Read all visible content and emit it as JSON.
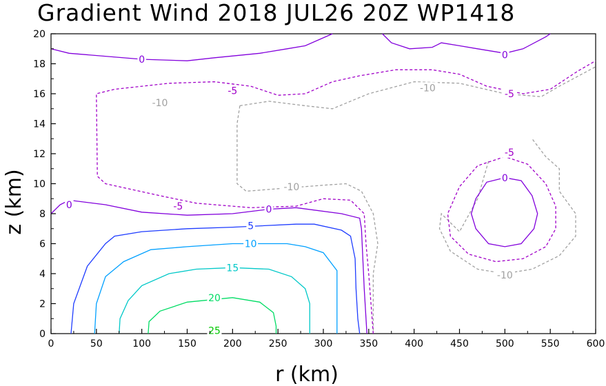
{
  "chart_data": {
    "type": "contour",
    "title": "Gradient Wind 2018 JUL26 20Z   WP1418",
    "xlabel": "r (km)",
    "ylabel": "z (km)",
    "xlim": [
      0,
      600
    ],
    "ylim": [
      0,
      20
    ],
    "xticks": [
      "0",
      "50",
      "100",
      "150",
      "200",
      "250",
      "300",
      "350",
      "400",
      "450",
      "500",
      "550",
      "600"
    ],
    "yticks": [
      "0",
      "2",
      "4",
      "6",
      "8",
      "10",
      "12",
      "14",
      "16",
      "18",
      "20"
    ],
    "grid": false,
    "colors": {
      "neg10": "#a0a0a0",
      "neg5": "#a000c8",
      "zero": "#8200dc",
      "pos5": "#1e3cff",
      "pos10": "#00a0ff",
      "pos15": "#00c8c8",
      "pos20": "#00dc64",
      "pos25": "#00c800"
    },
    "contours": [
      {
        "level": -10,
        "color_key": "neg10",
        "dashed": true,
        "points": [
          [
            208,
            15.2
          ],
          [
            205,
            14.0
          ],
          [
            205,
            10.0
          ],
          [
            215,
            9.5
          ],
          [
            300,
            9.9
          ],
          [
            325,
            10.0
          ],
          [
            342,
            9.5
          ],
          [
            355,
            8.0
          ],
          [
            360,
            6.0
          ],
          [
            355,
            4.0
          ],
          [
            355,
            0
          ]
        ]
      },
      {
        "level": -10,
        "color_key": "neg10",
        "dashed": true,
        "points": [
          [
            208,
            15.2
          ],
          [
            240,
            15.5
          ],
          [
            280,
            15.2
          ],
          [
            310,
            15.0
          ],
          [
            350,
            16.0
          ],
          [
            400,
            16.8
          ],
          [
            450,
            16.7
          ],
          [
            500,
            16.0
          ],
          [
            540,
            15.8
          ],
          [
            560,
            16.5
          ],
          [
            600,
            17.8
          ]
        ]
      },
      {
        "level": -10,
        "color_key": "neg10",
        "dashed": true,
        "points": [
          [
            482,
            11.5
          ],
          [
            470,
            9.0
          ],
          [
            450,
            6.8
          ],
          [
            430,
            8.0
          ],
          [
            428,
            7.0
          ],
          [
            440,
            5.5
          ],
          [
            470,
            4.3
          ],
          [
            500,
            4.0
          ],
          [
            530,
            4.3
          ],
          [
            560,
            5.2
          ],
          [
            578,
            6.5
          ],
          [
            578,
            8.0
          ],
          [
            560,
            9.5
          ],
          [
            560,
            11.0
          ],
          [
            545,
            11.8
          ],
          [
            530,
            13.0
          ]
        ]
      },
      {
        "level": -5,
        "color_key": "neg5",
        "dashed": true,
        "points": [
          [
            355,
            0
          ],
          [
            350,
            4.0
          ],
          [
            347,
            6.0
          ],
          [
            345,
            8.0
          ],
          [
            330,
            8.9
          ],
          [
            300,
            9.0
          ],
          [
            270,
            8.5
          ],
          [
            220,
            8.4
          ],
          [
            160,
            8.7
          ],
          [
            120,
            9.2
          ],
          [
            60,
            10.0
          ],
          [
            51,
            10.5
          ],
          [
            50,
            16.0
          ],
          [
            70,
            16.3
          ],
          [
            130,
            16.7
          ],
          [
            180,
            16.8
          ],
          [
            220,
            16.5
          ],
          [
            250,
            15.9
          ],
          [
            280,
            16.0
          ],
          [
            310,
            16.8
          ],
          [
            340,
            17.2
          ],
          [
            380,
            17.6
          ],
          [
            420,
            17.6
          ],
          [
            450,
            17.3
          ],
          [
            480,
            16.5
          ],
          [
            520,
            16.0
          ],
          [
            550,
            16.3
          ],
          [
            580,
            17.5
          ],
          [
            600,
            18.2
          ]
        ]
      },
      {
        "level": -5,
        "color_key": "neg5",
        "dashed": true,
        "points": [
          [
            500,
            11.8
          ],
          [
            470,
            11.2
          ],
          [
            450,
            9.8
          ],
          [
            437,
            8.0
          ],
          [
            440,
            6.5
          ],
          [
            460,
            5.3
          ],
          [
            490,
            4.8
          ],
          [
            520,
            5.0
          ],
          [
            545,
            5.8
          ],
          [
            556,
            7.0
          ],
          [
            556,
            8.5
          ],
          [
            545,
            10.0
          ],
          [
            525,
            11.3
          ],
          [
            500,
            11.8
          ]
        ]
      },
      {
        "level": 0,
        "color_key": "zero",
        "dashed": false,
        "points": [
          [
            0,
            8.0
          ],
          [
            10,
            8.6
          ],
          [
            20,
            8.9
          ],
          [
            60,
            8.6
          ],
          [
            100,
            8.1
          ],
          [
            150,
            7.9
          ],
          [
            200,
            8.0
          ],
          [
            240,
            8.3
          ],
          [
            270,
            8.4
          ],
          [
            320,
            8.0
          ],
          [
            340,
            7.7
          ],
          [
            342,
            7.0
          ],
          [
            345,
            3.0
          ],
          [
            348,
            0
          ]
        ]
      },
      {
        "level": 0,
        "color_key": "zero",
        "dashed": false,
        "points": [
          [
            0,
            19.0
          ],
          [
            20,
            18.7
          ],
          [
            100,
            18.3
          ],
          [
            150,
            18.2
          ],
          [
            180,
            18.4
          ],
          [
            230,
            18.7
          ],
          [
            260,
            19.0
          ],
          [
            280,
            19.2
          ],
          [
            310,
            20.0
          ]
        ]
      },
      {
        "level": 0,
        "color_key": "zero",
        "dashed": false,
        "points": [
          [
            365,
            20.0
          ],
          [
            375,
            19.4
          ],
          [
            395,
            19.0
          ],
          [
            420,
            19.1
          ],
          [
            430,
            19.4
          ],
          [
            450,
            19.2
          ],
          [
            470,
            19.0
          ],
          [
            500,
            18.7
          ],
          [
            520,
            19.0
          ],
          [
            545,
            19.8
          ],
          [
            550,
            20.0
          ]
        ]
      },
      {
        "level": 0,
        "color_key": "zero",
        "dashed": false,
        "points": [
          [
            500,
            10.4
          ],
          [
            480,
            10.1
          ],
          [
            468,
            9.0
          ],
          [
            463,
            8.0
          ],
          [
            468,
            7.0
          ],
          [
            482,
            6.0
          ],
          [
            500,
            5.8
          ],
          [
            518,
            6.0
          ],
          [
            532,
            7.0
          ],
          [
            536,
            8.0
          ],
          [
            530,
            9.2
          ],
          [
            518,
            10.2
          ],
          [
            500,
            10.4
          ]
        ]
      },
      {
        "level": 5,
        "color_key": "pos5",
        "dashed": false,
        "points": [
          [
            22,
            0
          ],
          [
            25,
            2.0
          ],
          [
            40,
            4.5
          ],
          [
            60,
            6.0
          ],
          [
            70,
            6.5
          ],
          [
            100,
            6.8
          ],
          [
            150,
            7.0
          ],
          [
            200,
            7.1
          ],
          [
            270,
            7.3
          ],
          [
            290,
            7.3
          ],
          [
            320,
            6.9
          ],
          [
            330,
            6.5
          ],
          [
            335,
            5.0
          ],
          [
            336,
            3.0
          ],
          [
            338,
            1.0
          ],
          [
            340,
            0
          ]
        ]
      },
      {
        "level": 10,
        "color_key": "pos10",
        "dashed": false,
        "points": [
          [
            48,
            0
          ],
          [
            50,
            2.0
          ],
          [
            60,
            3.8
          ],
          [
            80,
            4.8
          ],
          [
            110,
            5.6
          ],
          [
            150,
            5.8
          ],
          [
            200,
            6.0
          ],
          [
            230,
            6.0
          ],
          [
            260,
            6.0
          ],
          [
            280,
            5.8
          ],
          [
            300,
            5.4
          ],
          [
            315,
            4.2
          ],
          [
            315,
            0
          ]
        ]
      },
      {
        "level": 15,
        "color_key": "pos15",
        "dashed": false,
        "points": [
          [
            75,
            0
          ],
          [
            76,
            1.0
          ],
          [
            85,
            2.2
          ],
          [
            100,
            3.2
          ],
          [
            130,
            4.0
          ],
          [
            160,
            4.3
          ],
          [
            200,
            4.4
          ],
          [
            240,
            4.3
          ],
          [
            265,
            3.8
          ],
          [
            280,
            3.0
          ],
          [
            285,
            2.0
          ],
          [
            285,
            0
          ]
        ]
      },
      {
        "level": 20,
        "color_key": "pos20",
        "dashed": false,
        "points": [
          [
            107,
            0
          ],
          [
            108,
            0.8
          ],
          [
            120,
            1.5
          ],
          [
            150,
            2.1
          ],
          [
            200,
            2.4
          ],
          [
            230,
            2.1
          ],
          [
            245,
            1.4
          ],
          [
            248,
            0.5
          ],
          [
            248,
            0
          ]
        ]
      }
    ],
    "contour_labels": [
      {
        "text": "0",
        "x": 100,
        "y": 18.3,
        "color_key": "zero"
      },
      {
        "text": "0",
        "x": 500,
        "y": 18.6,
        "color_key": "zero"
      },
      {
        "text": "-5",
        "x": 200,
        "y": 16.2,
        "color_key": "neg5"
      },
      {
        "text": "-10",
        "x": 415,
        "y": 16.4,
        "color_key": "neg10"
      },
      {
        "text": "-5",
        "x": 505,
        "y": 16.0,
        "color_key": "neg5"
      },
      {
        "text": "-10",
        "x": 120,
        "y": 15.4,
        "color_key": "neg10"
      },
      {
        "text": "-5",
        "x": 505,
        "y": 12.1,
        "color_key": "neg5"
      },
      {
        "text": "-10",
        "x": 265,
        "y": 9.8,
        "color_key": "neg10"
      },
      {
        "text": "0",
        "x": 500,
        "y": 10.4,
        "color_key": "zero"
      },
      {
        "text": "0",
        "x": 20,
        "y": 8.6,
        "color_key": "zero"
      },
      {
        "text": "-5",
        "x": 140,
        "y": 8.5,
        "color_key": "neg5"
      },
      {
        "text": "0",
        "x": 240,
        "y": 8.3,
        "color_key": "zero"
      },
      {
        "text": "5",
        "x": 220,
        "y": 7.2,
        "color_key": "pos5"
      },
      {
        "text": "10",
        "x": 220,
        "y": 6.0,
        "color_key": "pos10"
      },
      {
        "text": "-10",
        "x": 500,
        "y": 3.9,
        "color_key": "neg10"
      },
      {
        "text": "15",
        "x": 200,
        "y": 4.4,
        "color_key": "pos15"
      },
      {
        "text": "20",
        "x": 180,
        "y": 2.4,
        "color_key": "pos20"
      },
      {
        "text": "25",
        "x": 180,
        "y": 0.2,
        "color_key": "pos25"
      }
    ]
  }
}
